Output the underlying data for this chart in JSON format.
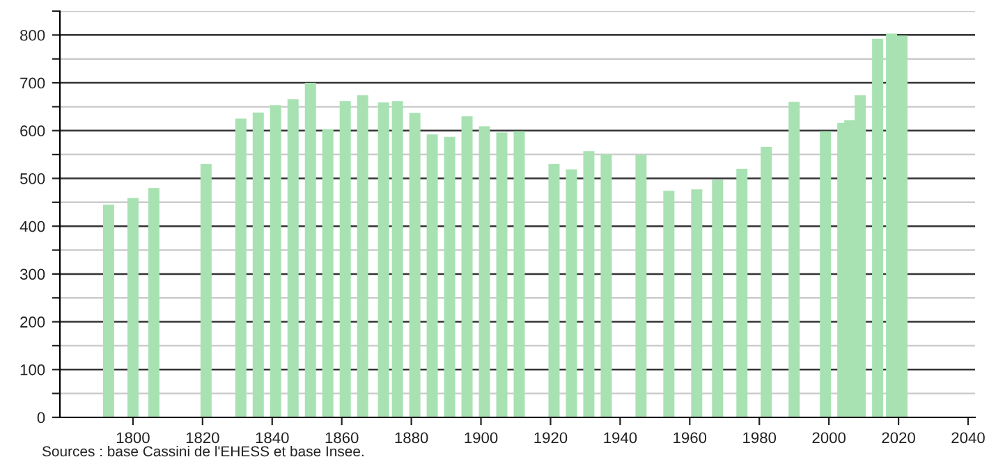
{
  "chart_data": {
    "type": "bar",
    "color": "#a8e2b2",
    "x": [
      1793,
      1800,
      1806,
      1821,
      1831,
      1836,
      1841,
      1846,
      1851,
      1856,
      1861,
      1866,
      1872,
      1876,
      1881,
      1886,
      1891,
      1896,
      1901,
      1906,
      1911,
      1921,
      1926,
      1931,
      1936,
      1946,
      1954,
      1962,
      1968,
      1975,
      1982,
      1990,
      1999,
      2004,
      2006,
      2009,
      2014,
      2018,
      2021
    ],
    "values": [
      445,
      459,
      480,
      530,
      625,
      638,
      653,
      666,
      700,
      603,
      662,
      674,
      659,
      662,
      637,
      592,
      587,
      630,
      609,
      596,
      599,
      530,
      519,
      557,
      550,
      549,
      474,
      477,
      497,
      520,
      566,
      660,
      599,
      616,
      622,
      674,
      792,
      803,
      799
    ],
    "xlim": [
      1779,
      2042
    ],
    "xticks": [
      1800,
      1820,
      1840,
      1860,
      1880,
      1900,
      1920,
      1940,
      1960,
      1980,
      2000,
      2020,
      2040
    ],
    "ylim": [
      0,
      850
    ],
    "yticks": [
      0,
      {
        "value": 50,
        "label": null
      },
      100,
      {
        "value": 150,
        "label": null
      },
      200,
      {
        "value": 250,
        "label": null
      },
      300,
      {
        "value": 350,
        "label": null
      },
      400,
      {
        "value": 450,
        "label": null
      },
      500,
      {
        "value": 550,
        "label": null
      },
      600,
      {
        "value": 650,
        "label": null
      },
      700,
      {
        "value": 750,
        "label": null
      },
      800,
      {
        "value": 850,
        "label": null
      }
    ],
    "grid": "y",
    "legend": false,
    "annotations": [
      "Sources : base Cassini de l'EHESS et base Insee."
    ]
  }
}
